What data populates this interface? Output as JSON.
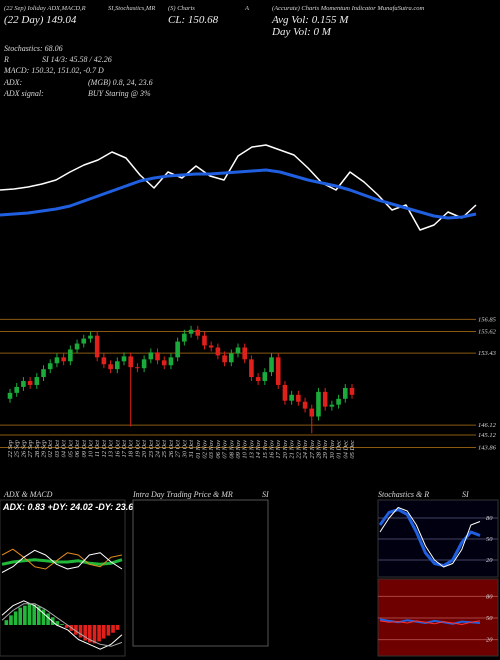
{
  "header": {
    "top": [
      "(22 Sep) Ioliday ADX,MACD,R",
      "SI,Stochastics,MR",
      "(S) Charts",
      "A",
      "(Accurate) Charts Momentum Indicator MunafaSutra.com"
    ],
    "day": "(22 Day) 149.04",
    "close": "CL: 150.68",
    "avg_vol": "Avg Vol: 0.155 M",
    "day_vol": "Day Vol: 0 M",
    "stochastics": "Stochastics: 68.06",
    "rsi_r": "R",
    "rsi": "SI 14/3: 45.58 / 42.26",
    "macd": "MACD: 150.32, 151.02, -0.7 D",
    "adx": "ADX:",
    "adx_values": "(MGB) 0.8, 24, 23.6",
    "adx_signal": "ADX signal:",
    "signal": "BUY Staring @ 3%"
  },
  "panels": {
    "adx_macd": "ADX & MACD",
    "adx_text": "ADX: 0.83 +DY: 24.02 -DY: 23.62",
    "intraday": "Intra Day Trading Price & MR",
    "intraday_si": "SI",
    "stoch": "Stochastics & R",
    "stoch_si": "SI"
  },
  "chart_data": [
    {
      "type": "line",
      "ylim": [
        0,
        130
      ],
      "series": [
        {
          "color": "#ffffff",
          "width": 1.5,
          "values": [
            60,
            61,
            63,
            66,
            70,
            78,
            85,
            90,
            98,
            92,
            75,
            62,
            78,
            72,
            84,
            74,
            70,
            94,
            103,
            105,
            100,
            95,
            82,
            67,
            60,
            78,
            68,
            55,
            40,
            45,
            20,
            25,
            38,
            32,
            45
          ]
        },
        {
          "color": "#1f5fe0",
          "width": 3,
          "values": [
            35,
            36,
            37,
            39,
            41,
            44,
            49,
            54,
            59,
            64,
            69,
            72,
            74,
            75,
            76,
            76,
            77,
            78,
            79,
            80,
            78,
            74,
            70,
            67,
            64,
            60,
            55,
            50,
            46,
            42,
            38,
            34,
            32,
            33,
            36
          ]
        }
      ]
    },
    {
      "type": "candlestick",
      "ylim": [
        143.4,
        157.6
      ],
      "yticks": [
        156.85,
        155.62,
        153.43,
        146.12,
        145.12,
        143.86
      ],
      "grid": true,
      "grid_color": "#8a5a10",
      "up_color": "#1aab3a",
      "down_color": "#e0201a",
      "categories": [
        "22 Sep",
        "25 Sep",
        "26 Sep",
        "27 Sep",
        "28 Sep",
        "29 Sep",
        "02 Oct",
        "03 Oct",
        "04 Oct",
        "05 Oct",
        "06 Oct",
        "09 Oct",
        "10 Oct",
        "11 Oct",
        "12 Oct",
        "13 Oct",
        "16 Oct",
        "17 Oct",
        "18 Oct",
        "19 Oct",
        "20 Oct",
        "23 Oct",
        "24 Oct",
        "25 Oct",
        "26 Oct",
        "27 Oct",
        "30 Oct",
        "31 Oct",
        "01 Nov",
        "02 Nov",
        "03 Nov",
        "06 Nov",
        "07 Nov",
        "08 Nov",
        "09 Nov",
        "10 Nov",
        "13 Nov",
        "14 Nov",
        "15 Nov",
        "16 Nov",
        "17 Nov",
        "20 Nov",
        "21 Nov",
        "22 Nov",
        "24 Nov",
        "27 Nov",
        "28 Nov",
        "29 Nov",
        "30 Nov",
        "01 Dec",
        "04 Dec",
        "05 Dec"
      ],
      "open": [
        148.8,
        149.4,
        150.0,
        150.6,
        150.2,
        151.0,
        151.8,
        152.4,
        153.0,
        152.6,
        153.8,
        154.4,
        154.9,
        155.2,
        153.0,
        152.3,
        151.8,
        152.6,
        153.1,
        152.0,
        151.9,
        152.8,
        153.5,
        152.7,
        152.2,
        153.0,
        154.6,
        155.4,
        155.8,
        155.2,
        154.2,
        154.0,
        153.2,
        152.5,
        153.4,
        154.0,
        152.8,
        151.0,
        150.6,
        151.5,
        153.0,
        150.2,
        148.6,
        149.2,
        148.5,
        147.8,
        147.0,
        149.5,
        148.0,
        148.2,
        148.8,
        149.9
      ],
      "high": [
        149.8,
        150.4,
        151.0,
        151.0,
        151.4,
        152.2,
        152.8,
        153.4,
        153.4,
        154.2,
        154.8,
        155.3,
        155.6,
        155.6,
        153.4,
        152.7,
        153.0,
        153.5,
        153.5,
        152.4,
        153.2,
        153.9,
        153.9,
        153.1,
        153.4,
        155.0,
        155.8,
        156.2,
        156.2,
        155.6,
        154.6,
        154.4,
        153.6,
        153.8,
        154.4,
        154.4,
        153.2,
        151.4,
        151.9,
        153.4,
        153.4,
        150.6,
        149.6,
        149.6,
        148.9,
        148.2,
        149.9,
        149.9,
        148.6,
        149.2,
        150.3,
        150.3
      ],
      "low": [
        148.4,
        149.0,
        149.6,
        149.8,
        149.8,
        150.6,
        151.4,
        152.0,
        152.2,
        152.2,
        153.4,
        154.0,
        154.5,
        152.6,
        151.9,
        151.4,
        151.4,
        152.2,
        146.0,
        151.5,
        151.5,
        152.4,
        152.3,
        151.8,
        151.8,
        152.6,
        154.2,
        155.0,
        154.8,
        153.8,
        153.6,
        152.8,
        152.1,
        152.1,
        153.0,
        152.4,
        150.6,
        150.2,
        150.2,
        151.1,
        149.8,
        148.2,
        148.2,
        148.1,
        147.4,
        145.3,
        146.6,
        147.6,
        147.6,
        147.8,
        148.4,
        148.8
      ],
      "close": [
        149.4,
        150.0,
        150.6,
        150.2,
        151.0,
        151.8,
        152.4,
        153.0,
        152.6,
        153.8,
        154.4,
        154.9,
        155.2,
        153.0,
        152.3,
        151.8,
        152.6,
        153.1,
        152.0,
        151.9,
        152.8,
        153.5,
        152.7,
        152.2,
        153.0,
        154.6,
        155.4,
        155.8,
        155.2,
        154.2,
        154.0,
        153.2,
        152.5,
        153.4,
        154.0,
        152.8,
        151.0,
        150.6,
        151.5,
        153.0,
        150.2,
        148.6,
        149.2,
        148.5,
        147.8,
        147.0,
        149.5,
        148.0,
        148.2,
        148.8,
        149.9,
        149.2
      ]
    },
    {
      "type": "line",
      "ylim": [
        0,
        60
      ],
      "series": [
        {
          "color": "#22b83a",
          "width": 3,
          "values": [
            22,
            24,
            25,
            26,
            25,
            24,
            24,
            25,
            23,
            22,
            23,
            26
          ]
        },
        {
          "color": "#e08a20",
          "width": 1,
          "values": [
            30,
            35,
            28,
            20,
            18,
            25,
            32,
            30,
            22,
            20,
            28,
            30
          ]
        },
        {
          "color": "#ffffff",
          "width": 1,
          "values": [
            15,
            20,
            28,
            34,
            30,
            22,
            18,
            20,
            30,
            32,
            24,
            18
          ]
        }
      ]
    },
    {
      "type": "histogram",
      "ylim": [
        -3,
        3
      ],
      "up_color": "#22b83a",
      "down_color": "#e0201a",
      "values": [
        0.5,
        1,
        1.4,
        1.8,
        2,
        2.2,
        2.1,
        1.9,
        1.6,
        1.2,
        0.8,
        0.4,
        0.1,
        -0.3,
        -0.6,
        -1,
        -1.3,
        -1.6,
        -1.8,
        -1.9,
        -1.7,
        -1.4,
        -1.1,
        -0.8,
        -0.5
      ]
    },
    {
      "type": "line",
      "ylim": [
        -3,
        3
      ],
      "series": [
        {
          "color": "#ffffff",
          "width": 1,
          "values": [
            1,
            2,
            2.5,
            2,
            1,
            0,
            -0.5,
            -1.5,
            -2,
            -2.5,
            -2,
            -1
          ]
        },
        {
          "color": "#aaaaaa",
          "width": 1,
          "values": [
            0.5,
            1.5,
            2.2,
            2.2,
            1.6,
            0.8,
            0,
            -0.8,
            -1.5,
            -2,
            -2.2,
            -1.8
          ]
        }
      ]
    },
    {
      "type": "line",
      "ylim": [
        0,
        100
      ],
      "yticks": [
        80,
        50,
        20
      ],
      "grid": true,
      "grid_color": "#444466",
      "series": [
        {
          "color": "#1f5fe0",
          "width": 3,
          "values": [
            70,
            88,
            92,
            85,
            60,
            30,
            15,
            12,
            20,
            45,
            60,
            55
          ]
        },
        {
          "color": "#ffffff",
          "width": 1,
          "values": [
            60,
            80,
            95,
            90,
            70,
            40,
            20,
            10,
            15,
            35,
            70,
            75
          ]
        }
      ]
    },
    {
      "type": "line",
      "ylim": [
        0,
        100
      ],
      "yticks": [
        80,
        50,
        20
      ],
      "grid": true,
      "grid_color": "#aa4444",
      "series": [
        {
          "color": "#1f5fe0",
          "width": 2,
          "values": [
            48,
            46,
            44,
            47,
            45,
            43,
            46,
            44,
            42,
            45,
            44,
            43
          ]
        },
        {
          "color": "#ff3030",
          "width": 1,
          "values": [
            46,
            44,
            45,
            43,
            46,
            44,
            42,
            45,
            43,
            41,
            44,
            46
          ]
        }
      ]
    }
  ]
}
